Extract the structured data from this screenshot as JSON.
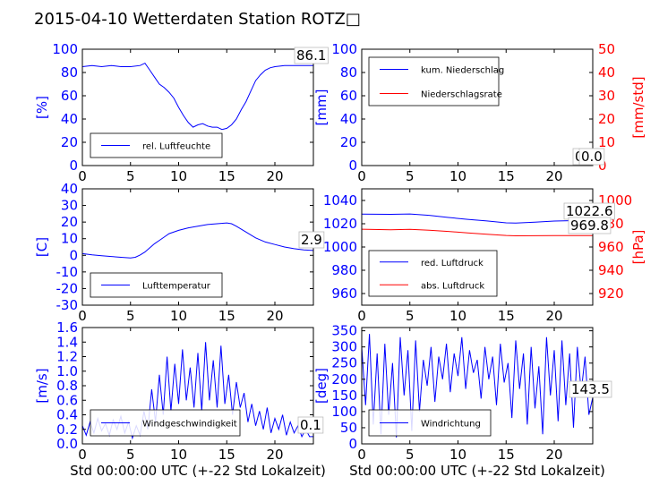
{
  "title": "2015-04-10 Wetterdaten Station ROTZ□",
  "colors": {
    "primary": "#0000ff",
    "secondary": "#ff0000",
    "axis": "#000000"
  },
  "chart_data": [
    {
      "type": "line",
      "panel": "top-left",
      "ylabel": "[%]",
      "xlim": [
        0,
        24
      ],
      "ylim": [
        0,
        100
      ],
      "xticks": [
        0,
        5,
        10,
        15,
        20
      ],
      "yticks": [
        0,
        20,
        40,
        60,
        80,
        100
      ],
      "legend": "lower-left",
      "series": [
        {
          "name": "rel. Luftfeuchte",
          "color": "#0000ff",
          "x": [
            0,
            1,
            2,
            3,
            4,
            5,
            6,
            6.5,
            7,
            7.5,
            8,
            8.5,
            9,
            9.5,
            10,
            10.5,
            11,
            11.5,
            12,
            12.5,
            13,
            13.5,
            14,
            14.5,
            15,
            15.5,
            16,
            16.5,
            17,
            17.5,
            18,
            18.5,
            19,
            19.5,
            20,
            21,
            22,
            23,
            24
          ],
          "y": [
            85,
            86,
            85,
            86,
            85,
            85,
            86,
            88,
            82,
            76,
            70,
            67,
            63,
            58,
            50,
            43,
            37,
            33,
            35,
            36,
            34,
            33,
            33,
            31,
            32,
            35,
            40,
            48,
            55,
            64,
            73,
            78,
            82,
            84,
            85,
            86,
            86,
            86,
            86
          ]
        }
      ],
      "annotation": "86.1"
    },
    {
      "type": "line",
      "panel": "top-right",
      "ylabel": "[mm]",
      "ylabel_right": "[mm/std]",
      "xlim": [
        0,
        24
      ],
      "ylim": [
        0,
        100
      ],
      "ylim_right": [
        0,
        50
      ],
      "xticks": [
        0,
        5,
        10,
        15,
        20
      ],
      "yticks": [
        0,
        20,
        40,
        60,
        80,
        100
      ],
      "yticks_right": [
        0,
        10,
        20,
        30,
        40,
        50
      ],
      "legend": "top-left",
      "series": [
        {
          "name": "kum. Niederschlag",
          "color": "#0000ff",
          "x": [
            0,
            24
          ],
          "y": [
            0,
            0
          ]
        },
        {
          "name": "Niederschlagsrate",
          "color": "#ff0000",
          "x": [
            0,
            24
          ],
          "y": [
            0,
            0
          ]
        }
      ],
      "annotations": [
        "0.0",
        "0.0"
      ]
    },
    {
      "type": "line",
      "panel": "middle-left",
      "ylabel": "[C]",
      "xlim": [
        0,
        24
      ],
      "ylim": [
        -30,
        40
      ],
      "xticks": [
        0,
        5,
        10,
        15,
        20
      ],
      "yticks": [
        -30,
        -20,
        -10,
        0,
        10,
        20,
        30,
        40
      ],
      "legend": "lower-left",
      "series": [
        {
          "name": "Lufttemperatur",
          "color": "#0000ff",
          "x": [
            0,
            1,
            2,
            3,
            4,
            5,
            5.5,
            6,
            6.5,
            7,
            7.5,
            8,
            8.5,
            9,
            10,
            11,
            12,
            13,
            14,
            15,
            15.5,
            16,
            17,
            18,
            19,
            20,
            21,
            22,
            23,
            24
          ],
          "y": [
            1,
            0.3,
            -0.2,
            -0.7,
            -1.2,
            -1.6,
            -1.2,
            0.2,
            2,
            4.5,
            7,
            9,
            11,
            13,
            15,
            16.5,
            17.5,
            18.5,
            19,
            19.5,
            19,
            17.5,
            14,
            10.5,
            8,
            6.5,
            5,
            4,
            3.2,
            2.9
          ]
        }
      ],
      "annotation": "2.9"
    },
    {
      "type": "line",
      "panel": "middle-right",
      "ylabel_right": "[hPa]",
      "xlim": [
        0,
        24
      ],
      "ylim": [
        950,
        1050
      ],
      "ylim_right": [
        910,
        1010
      ],
      "xticks": [
        0,
        5,
        10,
        15,
        20
      ],
      "yticks": [
        960,
        980,
        1000,
        1020,
        1040
      ],
      "yticks_right": [
        920,
        940,
        960,
        980,
        1000
      ],
      "legend": "lower-left",
      "series": [
        {
          "name": "red. Luftdruck",
          "color": "#0000ff",
          "x": [
            0,
            3,
            5,
            7,
            9,
            11,
            13,
            15,
            16,
            18,
            20,
            22,
            24
          ],
          "y": [
            1028.3,
            1028.1,
            1028.4,
            1027.2,
            1025.4,
            1023.8,
            1022.4,
            1020.8,
            1020.6,
            1021.3,
            1022.3,
            1022.6,
            1022.6
          ]
        },
        {
          "name": "abs. Luftdruck",
          "color": "#ff0000",
          "axis": "right",
          "x": [
            0,
            3,
            5,
            7,
            9,
            11,
            13,
            15,
            16,
            18,
            20,
            22,
            24
          ],
          "y": [
            975.3,
            974.8,
            975.2,
            974.4,
            973.4,
            972.1,
            970.9,
            969.9,
            969.6,
            969.7,
            969.8,
            969.8,
            969.8
          ]
        }
      ],
      "annotations": [
        "1022.6",
        "969.8"
      ]
    },
    {
      "type": "line",
      "panel": "bottom-left",
      "ylabel": "[m/s]",
      "xlabel": "Std 00:00:00 UTC (+-22 Std Lokalzeit)",
      "xlim": [
        0,
        24
      ],
      "ylim": [
        0,
        1.6
      ],
      "xticks": [
        0,
        5,
        10,
        15,
        20
      ],
      "yticks": [
        0.0,
        0.2,
        0.4,
        0.6,
        0.8,
        1.0,
        1.2,
        1.4,
        1.6
      ],
      "ytick_labels": [
        "0.0",
        "0.2",
        "0.4",
        "0.6",
        "0.8",
        "1.0",
        "1.2",
        "1.4",
        "1.6"
      ],
      "legend": "lower-left",
      "series": [
        {
          "name": "Windgeschwindigkeit",
          "color": "#0000ff",
          "x": [
            0,
            0.4,
            0.8,
            1.2,
            1.6,
            2.0,
            2.4,
            2.8,
            3.2,
            3.6,
            4.0,
            4.4,
            4.8,
            5.2,
            5.6,
            6.0,
            6.4,
            6.8,
            7.2,
            7.6,
            8.0,
            8.4,
            8.8,
            9.2,
            9.6,
            10.0,
            10.4,
            10.8,
            11.2,
            11.6,
            12.0,
            12.4,
            12.8,
            13.2,
            13.6,
            14.0,
            14.4,
            14.8,
            15.2,
            15.6,
            16.0,
            16.4,
            16.8,
            17.2,
            17.6,
            18.0,
            18.4,
            18.8,
            19.2,
            19.6,
            20.0,
            20.4,
            20.8,
            21.2,
            21.6,
            22.0,
            22.4,
            22.8,
            23.2,
            23.6,
            24.0
          ],
          "y": [
            0.25,
            0.12,
            0.3,
            0.15,
            0.35,
            0.18,
            0.28,
            0.12,
            0.33,
            0.2,
            0.38,
            0.15,
            0.3,
            0.08,
            0.25,
            0.12,
            0.45,
            0.2,
            0.75,
            0.3,
            0.95,
            0.4,
            1.2,
            0.45,
            1.1,
            0.55,
            1.3,
            0.6,
            1.05,
            0.5,
            1.25,
            0.45,
            1.4,
            0.6,
            1.15,
            0.5,
            1.35,
            0.55,
            0.95,
            0.4,
            0.85,
            0.5,
            0.7,
            0.3,
            0.55,
            0.25,
            0.45,
            0.2,
            0.5,
            0.15,
            0.35,
            0.2,
            0.4,
            0.12,
            0.3,
            0.15,
            0.25,
            0.1,
            0.2,
            0.1,
            0.1
          ]
        }
      ],
      "annotation": "0.1"
    },
    {
      "type": "line",
      "panel": "bottom-right",
      "ylabel": "[deg]",
      "xlabel": "Std 00:00:00 UTC (+-22 Std Lokalzeit)",
      "xlim": [
        0,
        24
      ],
      "ylim": [
        0,
        360
      ],
      "xticks": [
        0,
        5,
        10,
        15,
        20
      ],
      "yticks": [
        0,
        50,
        100,
        150,
        200,
        250,
        300,
        350
      ],
      "legend": "lower-left",
      "series": [
        {
          "name": "Windrichtung",
          "color": "#0000ff",
          "x": [
            0,
            0.4,
            0.8,
            1.2,
            1.6,
            2.0,
            2.4,
            2.8,
            3.2,
            3.6,
            4.0,
            4.4,
            4.8,
            5.2,
            5.6,
            6.0,
            6.4,
            6.8,
            7.2,
            7.6,
            8.0,
            8.4,
            8.8,
            9.2,
            9.6,
            10.0,
            10.4,
            10.8,
            11.2,
            11.6,
            12.0,
            12.4,
            12.8,
            13.2,
            13.6,
            14.0,
            14.4,
            14.8,
            15.2,
            15.6,
            16.0,
            16.4,
            16.8,
            17.2,
            17.6,
            18.0,
            18.4,
            18.8,
            19.2,
            19.6,
            20.0,
            20.4,
            20.8,
            21.2,
            21.6,
            22.0,
            22.4,
            22.8,
            23.2,
            23.6,
            24.0
          ],
          "y": [
            300,
            120,
            340,
            60,
            280,
            30,
            310,
            90,
            250,
            20,
            330,
            150,
            290,
            40,
            320,
            100,
            260,
            180,
            300,
            130,
            270,
            200,
            310,
            160,
            280,
            210,
            330,
            170,
            290,
            220,
            260,
            140,
            300,
            200,
            270,
            120,
            310,
            190,
            250,
            80,
            320,
            170,
            280,
            60,
            300,
            110,
            240,
            30,
            330,
            150,
            290,
            70,
            320,
            120,
            280,
            50,
            300,
            160,
            270,
            90,
            143.5
          ]
        }
      ],
      "annotation": "143.5"
    }
  ]
}
